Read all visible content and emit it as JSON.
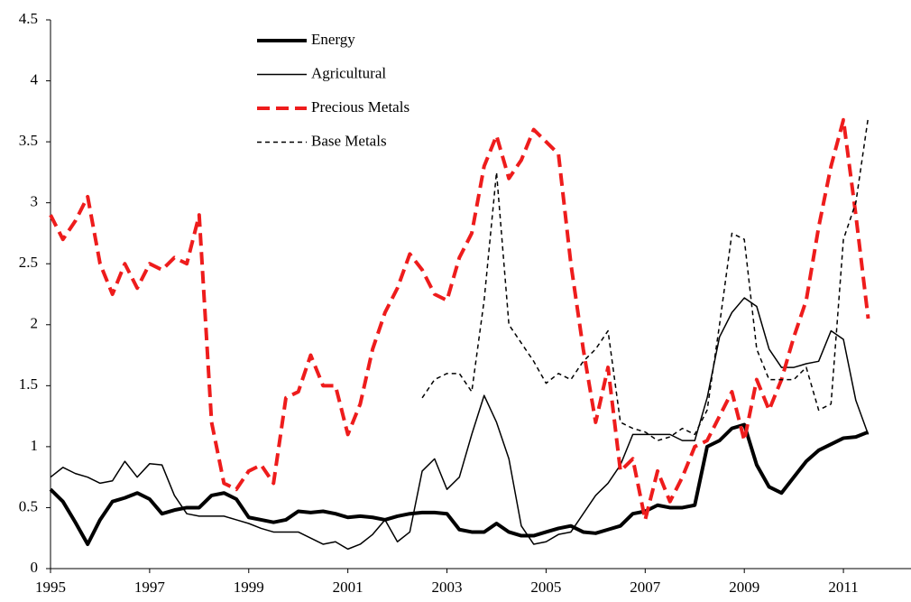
{
  "chart_data": {
    "type": "line",
    "x": [
      1995,
      1995.25,
      1995.5,
      1995.75,
      1996,
      1996.25,
      1996.5,
      1996.75,
      1997,
      1997.25,
      1997.5,
      1997.75,
      1998,
      1998.25,
      1998.5,
      1998.75,
      1999,
      1999.25,
      1999.5,
      1999.75,
      2000,
      2000.25,
      2000.5,
      2000.75,
      2001,
      2001.25,
      2001.5,
      2001.75,
      2002,
      2002.25,
      2002.5,
      2002.75,
      2003,
      2003.25,
      2003.5,
      2003.75,
      2004,
      2004.25,
      2004.5,
      2004.75,
      2005,
      2005.25,
      2005.5,
      2005.75,
      2006,
      2006.25,
      2006.5,
      2006.75,
      2007,
      2007.25,
      2007.5,
      2007.75,
      2008,
      2008.25,
      2008.5,
      2008.75,
      2009,
      2009.25,
      2009.5,
      2009.75,
      2010,
      2010.25,
      2010.5,
      2010.75,
      2011,
      2011.25,
      2011.5
    ],
    "series": [
      {
        "name": "Energy",
        "color": "#000000",
        "width": 4,
        "dash": "none",
        "values": [
          0.65,
          0.55,
          0.38,
          0.2,
          0.4,
          0.55,
          0.58,
          0.62,
          0.57,
          0.45,
          0.48,
          0.5,
          0.5,
          0.6,
          0.62,
          0.57,
          0.42,
          0.4,
          0.38,
          0.4,
          0.47,
          0.46,
          0.47,
          0.45,
          0.42,
          0.43,
          0.42,
          0.4,
          0.43,
          0.45,
          0.46,
          0.46,
          0.45,
          0.32,
          0.3,
          0.3,
          0.37,
          0.3,
          0.27,
          0.27,
          0.3,
          0.33,
          0.35,
          0.3,
          0.29,
          0.32,
          0.35,
          0.45,
          0.47,
          0.52,
          0.5,
          0.5,
          0.52,
          1.0,
          1.05,
          1.15,
          1.18,
          0.85,
          0.67,
          0.62,
          0.75,
          0.88,
          0.97,
          1.02,
          1.07,
          1.08,
          1.12
        ]
      },
      {
        "name": "Agricultural",
        "color": "#000000",
        "width": 1.5,
        "dash": "none",
        "values": [
          0.75,
          0.83,
          0.78,
          0.75,
          0.7,
          0.72,
          0.88,
          0.75,
          0.86,
          0.85,
          0.6,
          0.45,
          0.43,
          0.43,
          0.43,
          0.4,
          0.37,
          0.33,
          0.3,
          0.3,
          0.3,
          0.25,
          0.2,
          0.22,
          0.16,
          0.2,
          0.28,
          0.4,
          0.22,
          0.3,
          0.8,
          0.9,
          0.65,
          0.75,
          1.1,
          1.42,
          1.2,
          0.9,
          0.35,
          0.2,
          0.22,
          0.28,
          0.3,
          0.45,
          0.6,
          0.7,
          0.85,
          1.1,
          1.1,
          1.1,
          1.1,
          1.05,
          1.05,
          1.4,
          1.9,
          2.1,
          2.22,
          2.15,
          1.8,
          1.65,
          1.65,
          1.68,
          1.7,
          1.95,
          1.88,
          1.38,
          1.1
        ]
      },
      {
        "name": "Precious Metals",
        "color": "#ee1c1c",
        "width": 4,
        "dash": "14 7",
        "values": [
          2.9,
          2.7,
          2.85,
          3.05,
          2.5,
          2.25,
          2.5,
          2.3,
          2.5,
          2.45,
          2.55,
          2.5,
          2.9,
          1.2,
          0.7,
          0.65,
          0.8,
          0.85,
          0.7,
          1.4,
          1.45,
          1.75,
          1.5,
          1.5,
          1.1,
          1.35,
          1.8,
          2.1,
          2.3,
          2.58,
          2.45,
          2.25,
          2.2,
          2.55,
          2.75,
          3.3,
          3.55,
          3.2,
          3.35,
          3.6,
          3.5,
          3.4,
          2.5,
          1.8,
          1.2,
          1.65,
          0.8,
          0.9,
          0.4,
          0.8,
          0.55,
          0.75,
          1.0,
          1.05,
          1.25,
          1.45,
          1.05,
          1.55,
          1.3,
          1.55,
          1.9,
          2.2,
          2.8,
          3.3,
          3.68,
          2.9,
          2.05
        ]
      },
      {
        "name": "Base Metals",
        "color": "#000000",
        "width": 1.5,
        "dash": "5 4",
        "values": [
          null,
          null,
          null,
          null,
          null,
          null,
          null,
          null,
          null,
          null,
          null,
          null,
          null,
          null,
          null,
          null,
          null,
          null,
          null,
          null,
          null,
          null,
          null,
          null,
          null,
          null,
          null,
          null,
          null,
          null,
          1.4,
          1.55,
          1.6,
          1.6,
          1.45,
          2.2,
          3.25,
          2.0,
          1.85,
          1.7,
          1.52,
          1.6,
          1.55,
          1.7,
          1.8,
          1.95,
          1.2,
          1.15,
          1.12,
          1.05,
          1.08,
          1.15,
          1.1,
          1.3,
          2.0,
          2.75,
          2.7,
          1.8,
          1.55,
          1.55,
          1.55,
          1.65,
          1.3,
          1.35,
          2.7,
          3.0,
          3.7
        ]
      }
    ],
    "xlim": [
      1995,
      2012.4
    ],
    "xticks": [
      1995,
      1997,
      1999,
      2001,
      2003,
      2005,
      2007,
      2009,
      2011
    ],
    "ylim": [
      0,
      4.5
    ],
    "yticks": [
      0,
      0.5,
      1,
      1.5,
      2,
      2.5,
      3,
      3.5,
      4,
      4.5
    ],
    "legend": "top-center"
  }
}
